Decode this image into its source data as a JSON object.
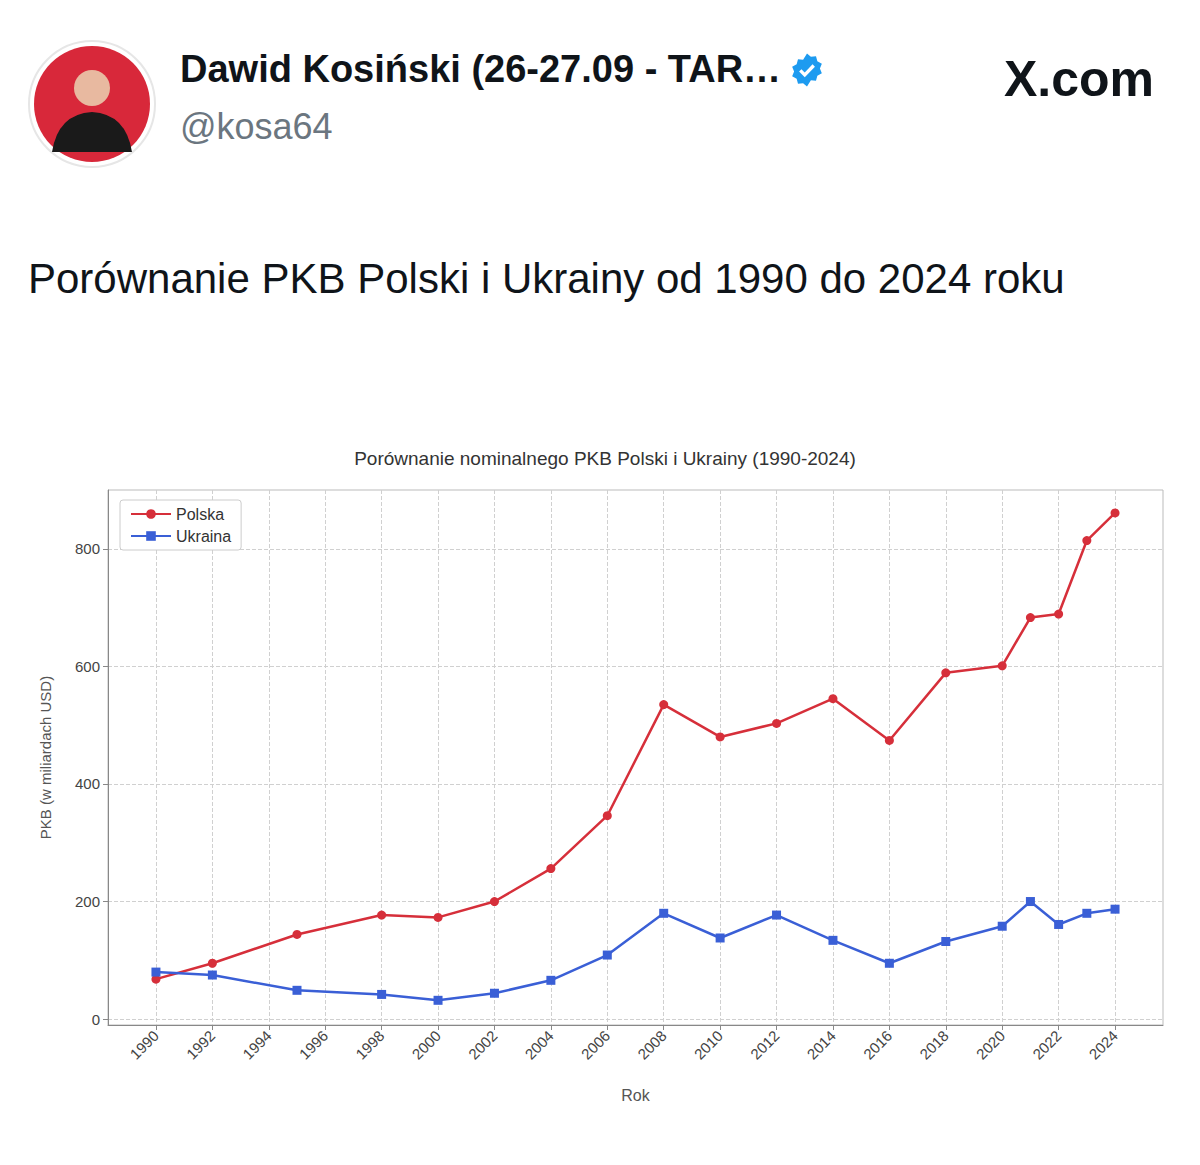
{
  "post": {
    "author": "Dawid Kosiński (26-27.09 - TAR…",
    "handle": "@kosa64",
    "site": "X.com",
    "text": "Porównanie PKB Polski i Ukrainy od 1990 do 2024 roku"
  },
  "chart_data": {
    "type": "line",
    "title": "Porównanie nominalnego PKB Polski i Ukrainy (1990-2024)",
    "x_label": "Rok",
    "y_label": "PKB (w miliardach USD)",
    "x": [
      1990,
      1992,
      1995,
      1998,
      2000,
      2002,
      2004,
      2006,
      2008,
      2010,
      2012,
      2014,
      2016,
      2018,
      2020,
      2021,
      2022,
      2023,
      2024
    ],
    "series": [
      {
        "name": "Polska",
        "color": "#d62f3a",
        "marker": "circle",
        "values": [
          68,
          95,
          144,
          177,
          173,
          200,
          256,
          346,
          535,
          480,
          503,
          545,
          474,
          589,
          601,
          683,
          689,
          814,
          861
        ]
      },
      {
        "name": "Ukraina",
        "color": "#3a5fd6",
        "marker": "square",
        "values": [
          80,
          75,
          49,
          42,
          32,
          44,
          66,
          109,
          180,
          138,
          177,
          134,
          95,
          132,
          158,
          200,
          161,
          180,
          187
        ]
      }
    ],
    "xlim": [
      1988.3,
      2025.7
    ],
    "xticks": [
      1990,
      1992,
      1994,
      1996,
      1998,
      2000,
      2002,
      2004,
      2006,
      2008,
      2010,
      2012,
      2014,
      2016,
      2018,
      2020,
      2022,
      2024
    ],
    "ylim": [
      -10,
      900
    ],
    "yticks": [
      0,
      200,
      400,
      600,
      800
    ],
    "grid": true,
    "legend": "upper left"
  }
}
